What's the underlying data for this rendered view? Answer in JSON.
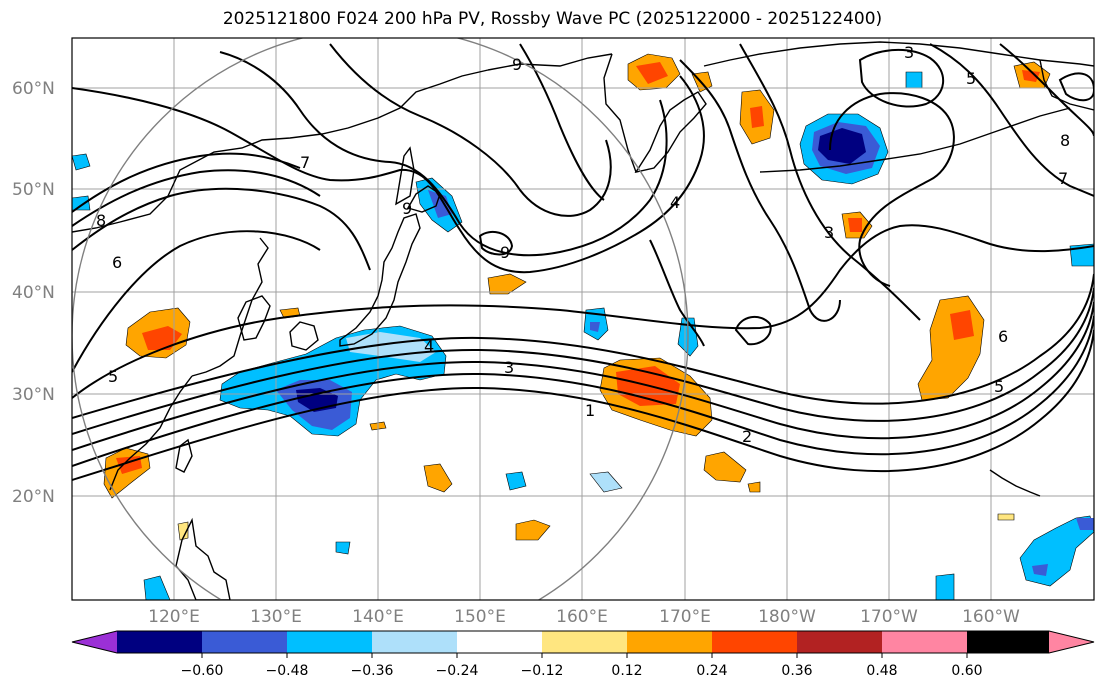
{
  "title": "2025121800 F024 200 hPa PV, Rossby Wave PC (2025122000 - 2025122400)",
  "lat_labels": [
    "60°N",
    "50°N",
    "40°N",
    "30°N",
    "20°N"
  ],
  "lon_labels": [
    "120°E",
    "130°E",
    "140°E",
    "150°E",
    "160°E",
    "170°E",
    "180°W",
    "170°W",
    "160°W"
  ],
  "contour_labels": [
    "1",
    "2",
    "3",
    "4",
    "5",
    "5",
    "6",
    "6",
    "7",
    "7",
    "8",
    "8",
    "9",
    "9",
    "9",
    "3",
    "3",
    "5",
    "4"
  ],
  "colorbar": {
    "ticks": [
      "−0.60",
      "−0.48",
      "−0.36",
      "−0.24",
      "−0.12",
      "0.12",
      "0.24",
      "0.36",
      "0.48",
      "0.60"
    ],
    "colors": [
      "#9b30d6",
      "#000080",
      "#3a5bd6",
      "#00bfff",
      "#aee0fa",
      "#ffffff",
      "#ffe680",
      "#ffa500",
      "#ff4500",
      "#b22222",
      "#ff85a2"
    ]
  },
  "colors": {
    "grid": "#a0a0a0",
    "circle": "#808080",
    "coast": "#000000",
    "contour": "#000000"
  }
}
